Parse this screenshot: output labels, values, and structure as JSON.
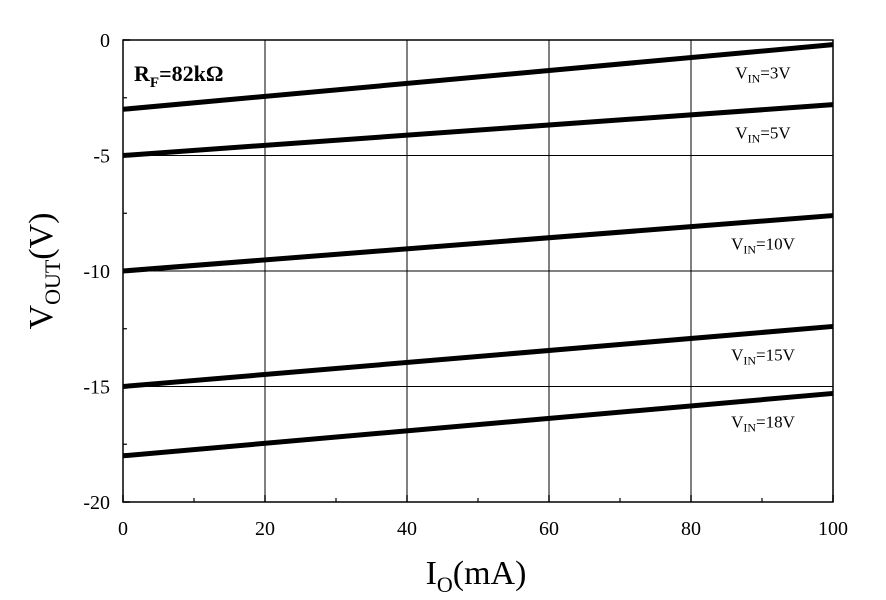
{
  "chart_data": {
    "type": "line",
    "xlabel": {
      "main": "I",
      "sub": "O",
      "rest": "(mA)"
    },
    "ylabel": {
      "main": "V",
      "sub": "OUT",
      "rest": "(V)"
    },
    "xlim": [
      0,
      100
    ],
    "ylim": [
      -20,
      0
    ],
    "xticks": [
      0,
      20,
      40,
      60,
      80,
      100
    ],
    "yticks": [
      0,
      -5,
      -10,
      -15,
      -20
    ],
    "grid": true,
    "annotation": {
      "main": "R",
      "sub": "F",
      "rest": "=82kΩ"
    },
    "series": [
      {
        "label": {
          "main": "V",
          "sub": "IN",
          "rest": "=3V"
        },
        "x": [
          0,
          100
        ],
        "y": [
          -3.0,
          -0.2
        ]
      },
      {
        "label": {
          "main": "V",
          "sub": "IN",
          "rest": "=5V"
        },
        "x": [
          0,
          100
        ],
        "y": [
          -5.0,
          -2.8
        ]
      },
      {
        "label": {
          "main": "V",
          "sub": "IN",
          "rest": "=10V"
        },
        "x": [
          0,
          100
        ],
        "y": [
          -10.0,
          -7.6
        ]
      },
      {
        "label": {
          "main": "V",
          "sub": "IN",
          "rest": "=15V"
        },
        "x": [
          0,
          100
        ],
        "y": [
          -15.0,
          -12.4
        ]
      },
      {
        "label": {
          "main": "V",
          "sub": "IN",
          "rest": "=18V"
        },
        "x": [
          0,
          100
        ],
        "y": [
          -18.0,
          -15.3
        ]
      }
    ]
  }
}
